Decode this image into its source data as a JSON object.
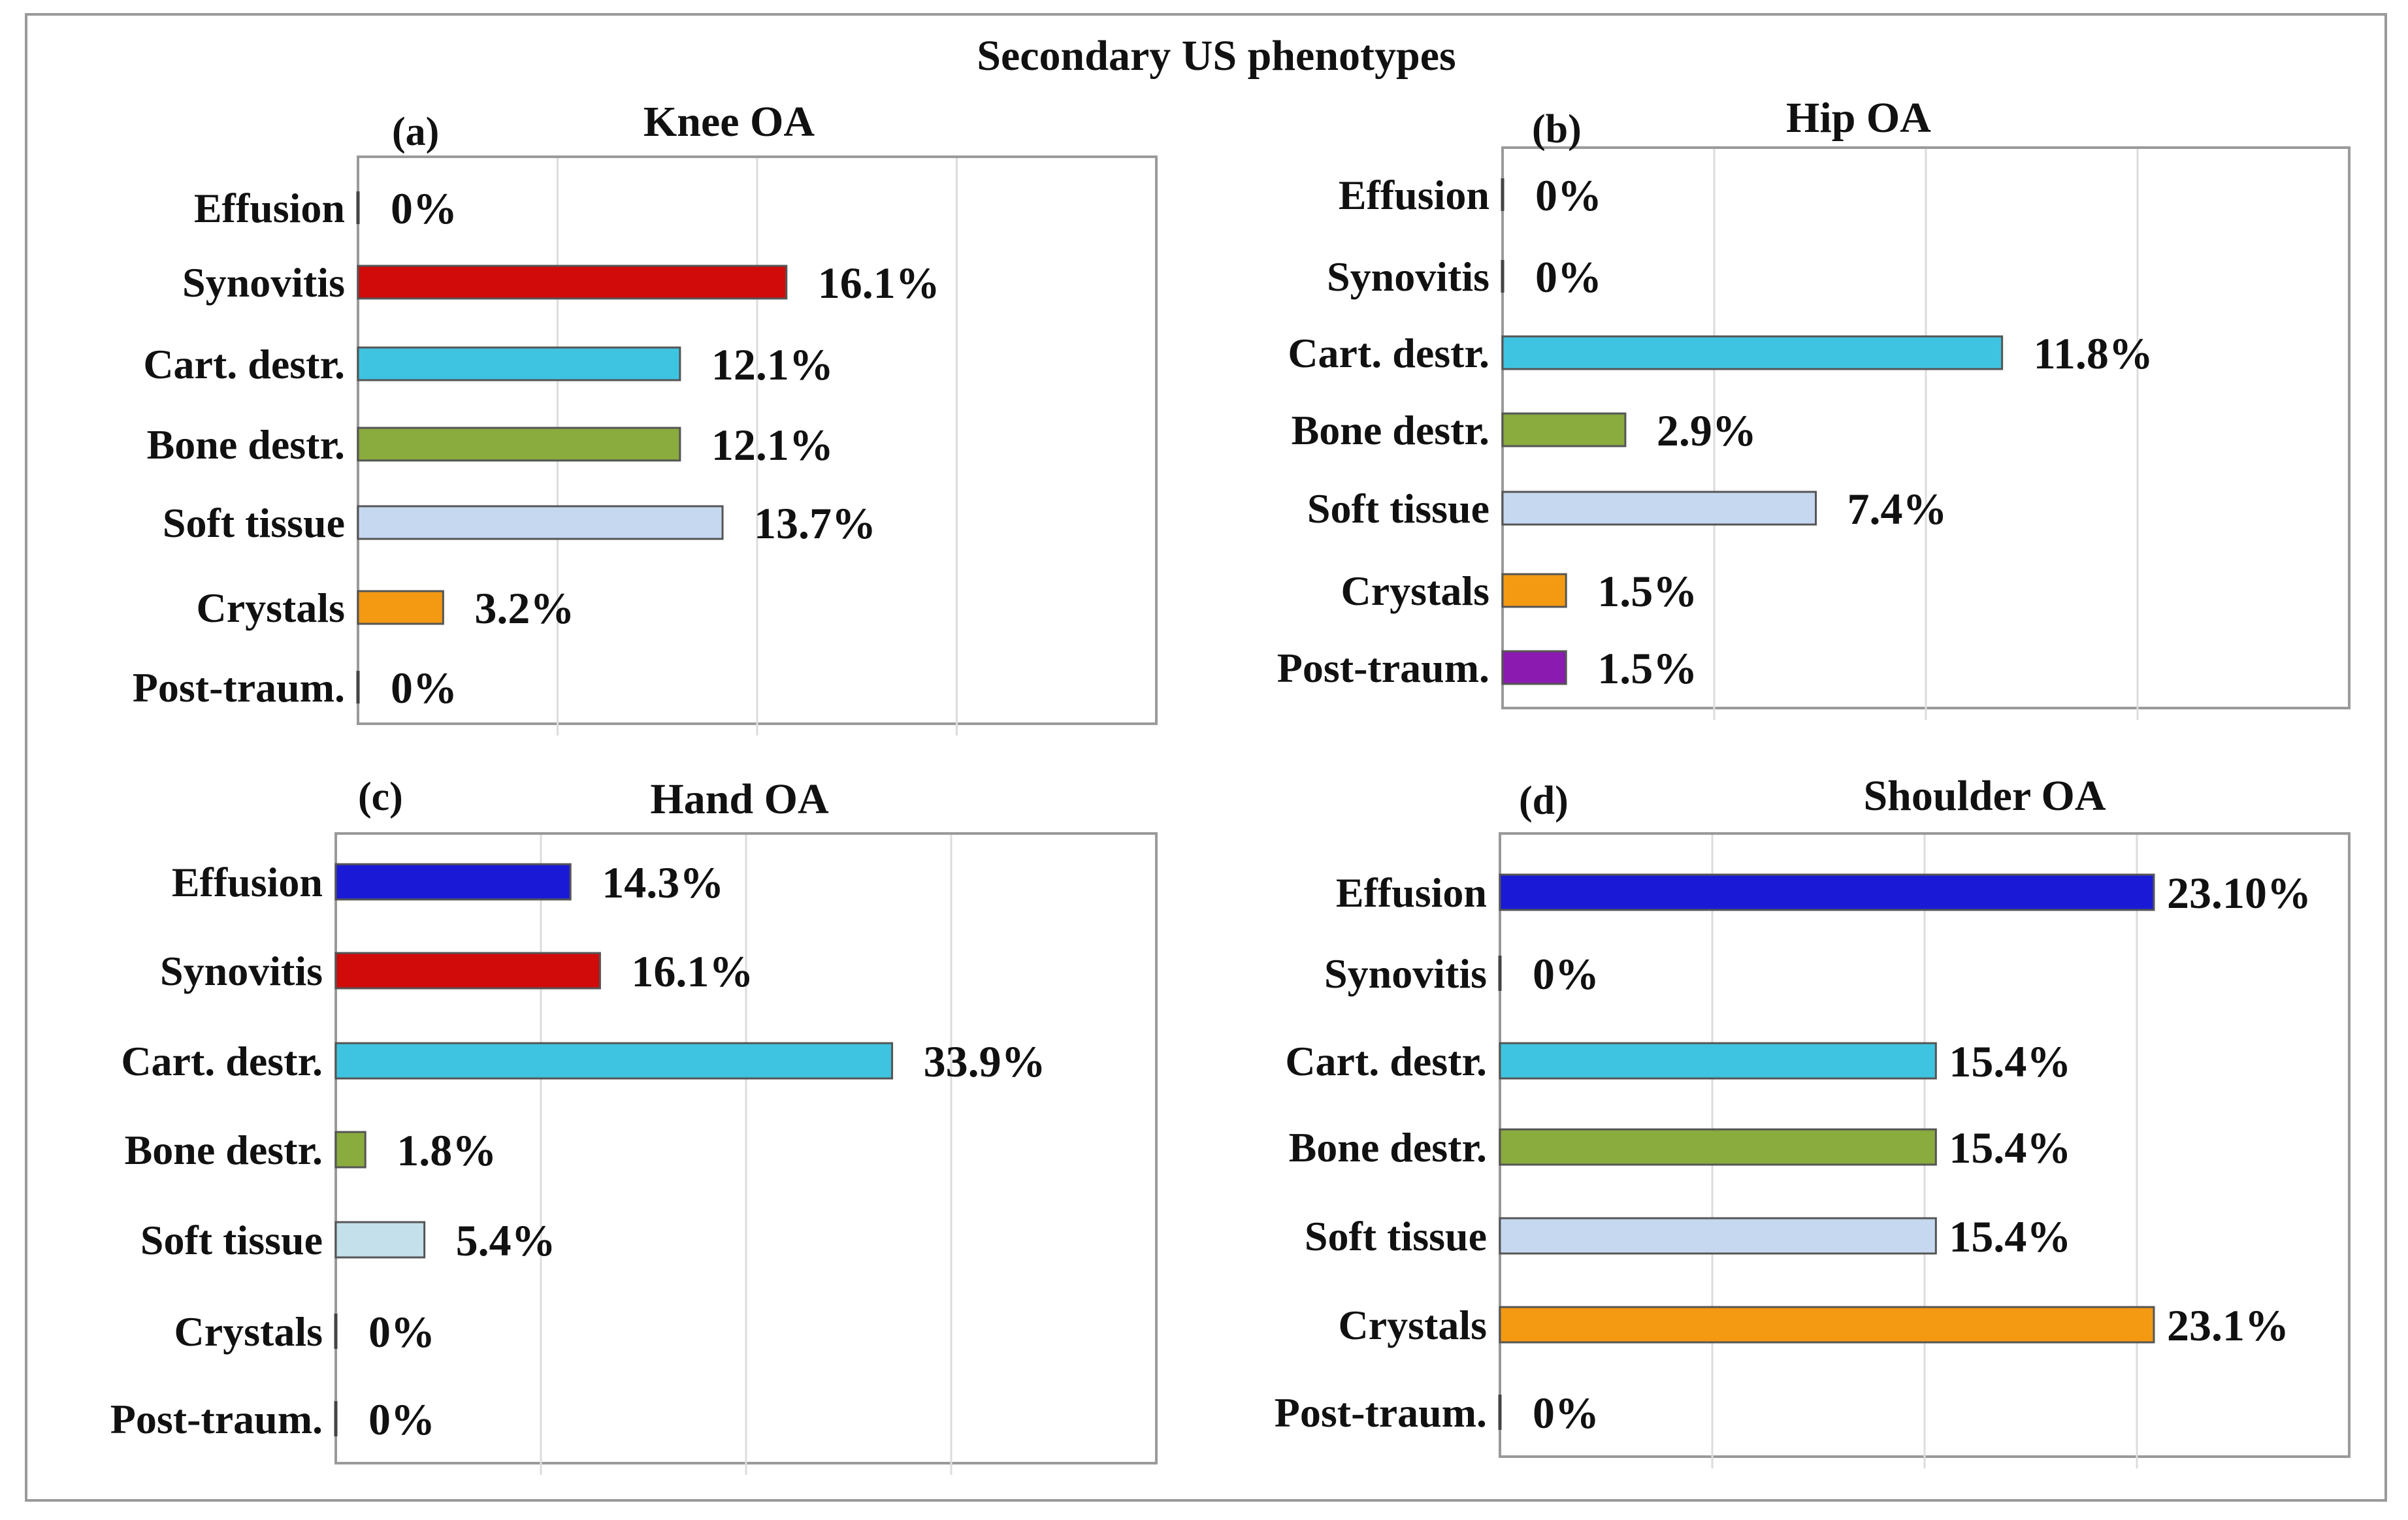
{
  "figure": {
    "title": "Secondary US phenotypes",
    "category_order": [
      "Effusion",
      "Synovitis",
      "Cart. destr.",
      "Bone destr.",
      "Soft tissue",
      "Crystals",
      "Post-traum."
    ],
    "series_colors": {
      "Effusion": "#1a1ad6",
      "Synovitis": "#d10a0a",
      "Cart. destr.": "#3ec4e0",
      "Bone destr.": "#8aab3e",
      "Soft tissue": "#c6d8f0",
      "Crystals": "#f39a12",
      "Post-traum.": "#8a1ab0"
    },
    "hand_soft_tissue_color": "#c4e0ea",
    "frame_color": "#9a9a9a",
    "grid_color": "#dcdcdc"
  },
  "chart_data": [
    {
      "type": "bar",
      "orientation": "horizontal",
      "panel": "(a)",
      "title": "Knee OA",
      "categories": [
        "Effusion",
        "Synovitis",
        "Cart. destr.",
        "Bone destr.",
        "Soft tissue",
        "Crystals",
        "Post-traum."
      ],
      "values": [
        0,
        16.1,
        12.1,
        12.1,
        13.7,
        3.2,
        0
      ],
      "labels": [
        "0%",
        "16.1%",
        "12.1%",
        "12.1%",
        "13.7%",
        "3.2%",
        "0%"
      ],
      "xlim": [
        0,
        30
      ],
      "grid": true
    },
    {
      "type": "bar",
      "orientation": "horizontal",
      "panel": "(b)",
      "title": "Hip OA",
      "categories": [
        "Effusion",
        "Synovitis",
        "Cart. destr.",
        "Bone destr.",
        "Soft tissue",
        "Crystals",
        "Post-traum."
      ],
      "values": [
        0,
        0,
        11.8,
        2.9,
        7.4,
        1.5,
        1.5
      ],
      "labels": [
        "0%",
        "0%",
        "11.8%",
        "2.9%",
        "7.4%",
        "1.5%",
        "1.5%"
      ],
      "xlim": [
        0,
        20
      ],
      "grid": true
    },
    {
      "type": "bar",
      "orientation": "horizontal",
      "panel": "(c)",
      "title": "Hand OA",
      "categories": [
        "Effusion",
        "Synovitis",
        "Cart. destr.",
        "Bone destr.",
        "Soft tissue",
        "Crystals",
        "Post-traum."
      ],
      "values": [
        14.3,
        16.1,
        33.9,
        1.8,
        5.4,
        0,
        0
      ],
      "labels": [
        "14.3%",
        "16.1%",
        "33.9%",
        "1.8%",
        "5.4%",
        "0%",
        "0%"
      ],
      "xlim": [
        0,
        50
      ],
      "grid": true
    },
    {
      "type": "bar",
      "orientation": "horizontal",
      "panel": "(d)",
      "title": "Shoulder OA",
      "categories": [
        "Effusion",
        "Synovitis",
        "Cart. destr.",
        "Bone destr.",
        "Soft tissue",
        "Crystals",
        "Post-traum."
      ],
      "values": [
        23.1,
        0,
        15.4,
        15.4,
        15.4,
        23.1,
        0
      ],
      "labels": [
        "23.10%",
        "0%",
        "15.4%",
        "15.4%",
        "15.4%",
        "23.1%",
        "0%"
      ],
      "xlim": [
        0,
        30
      ],
      "grid": true
    }
  ]
}
